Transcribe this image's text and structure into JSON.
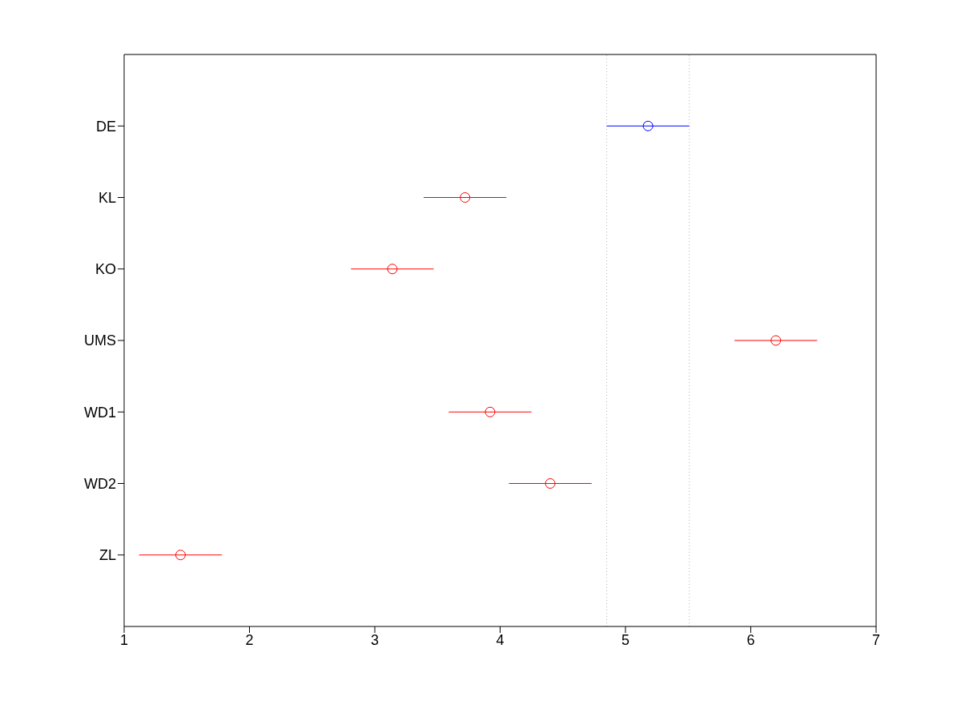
{
  "chart_data": {
    "type": "scatter",
    "orientation": "horizontal",
    "categories": [
      "DE",
      "KL",
      "KO",
      "UMS",
      "WD1",
      "WD2",
      "ZL"
    ],
    "values": [
      5.18,
      3.72,
      3.14,
      6.2,
      3.92,
      4.4,
      1.45
    ],
    "errors": [
      0.33,
      0.33,
      0.33,
      0.33,
      0.33,
      0.33,
      0.33
    ],
    "colors": [
      "#0000ff",
      "#ff0000",
      "#ff0000",
      "#ff0000",
      "#ff0000",
      "#ff0000",
      "#ff0000"
    ],
    "marker": "circle",
    "xlim": [
      1,
      7
    ],
    "xticks": [
      1,
      2,
      3,
      4,
      5,
      6,
      7
    ],
    "ref_lines": [
      {
        "axis": "x",
        "value": 4.85,
        "color": "#b4b4b4",
        "line_style": "dotted"
      },
      {
        "axis": "x",
        "value": 5.51,
        "color": "#b4b4b4",
        "line_style": "dotted"
      }
    ],
    "grid": false,
    "legend": false
  }
}
